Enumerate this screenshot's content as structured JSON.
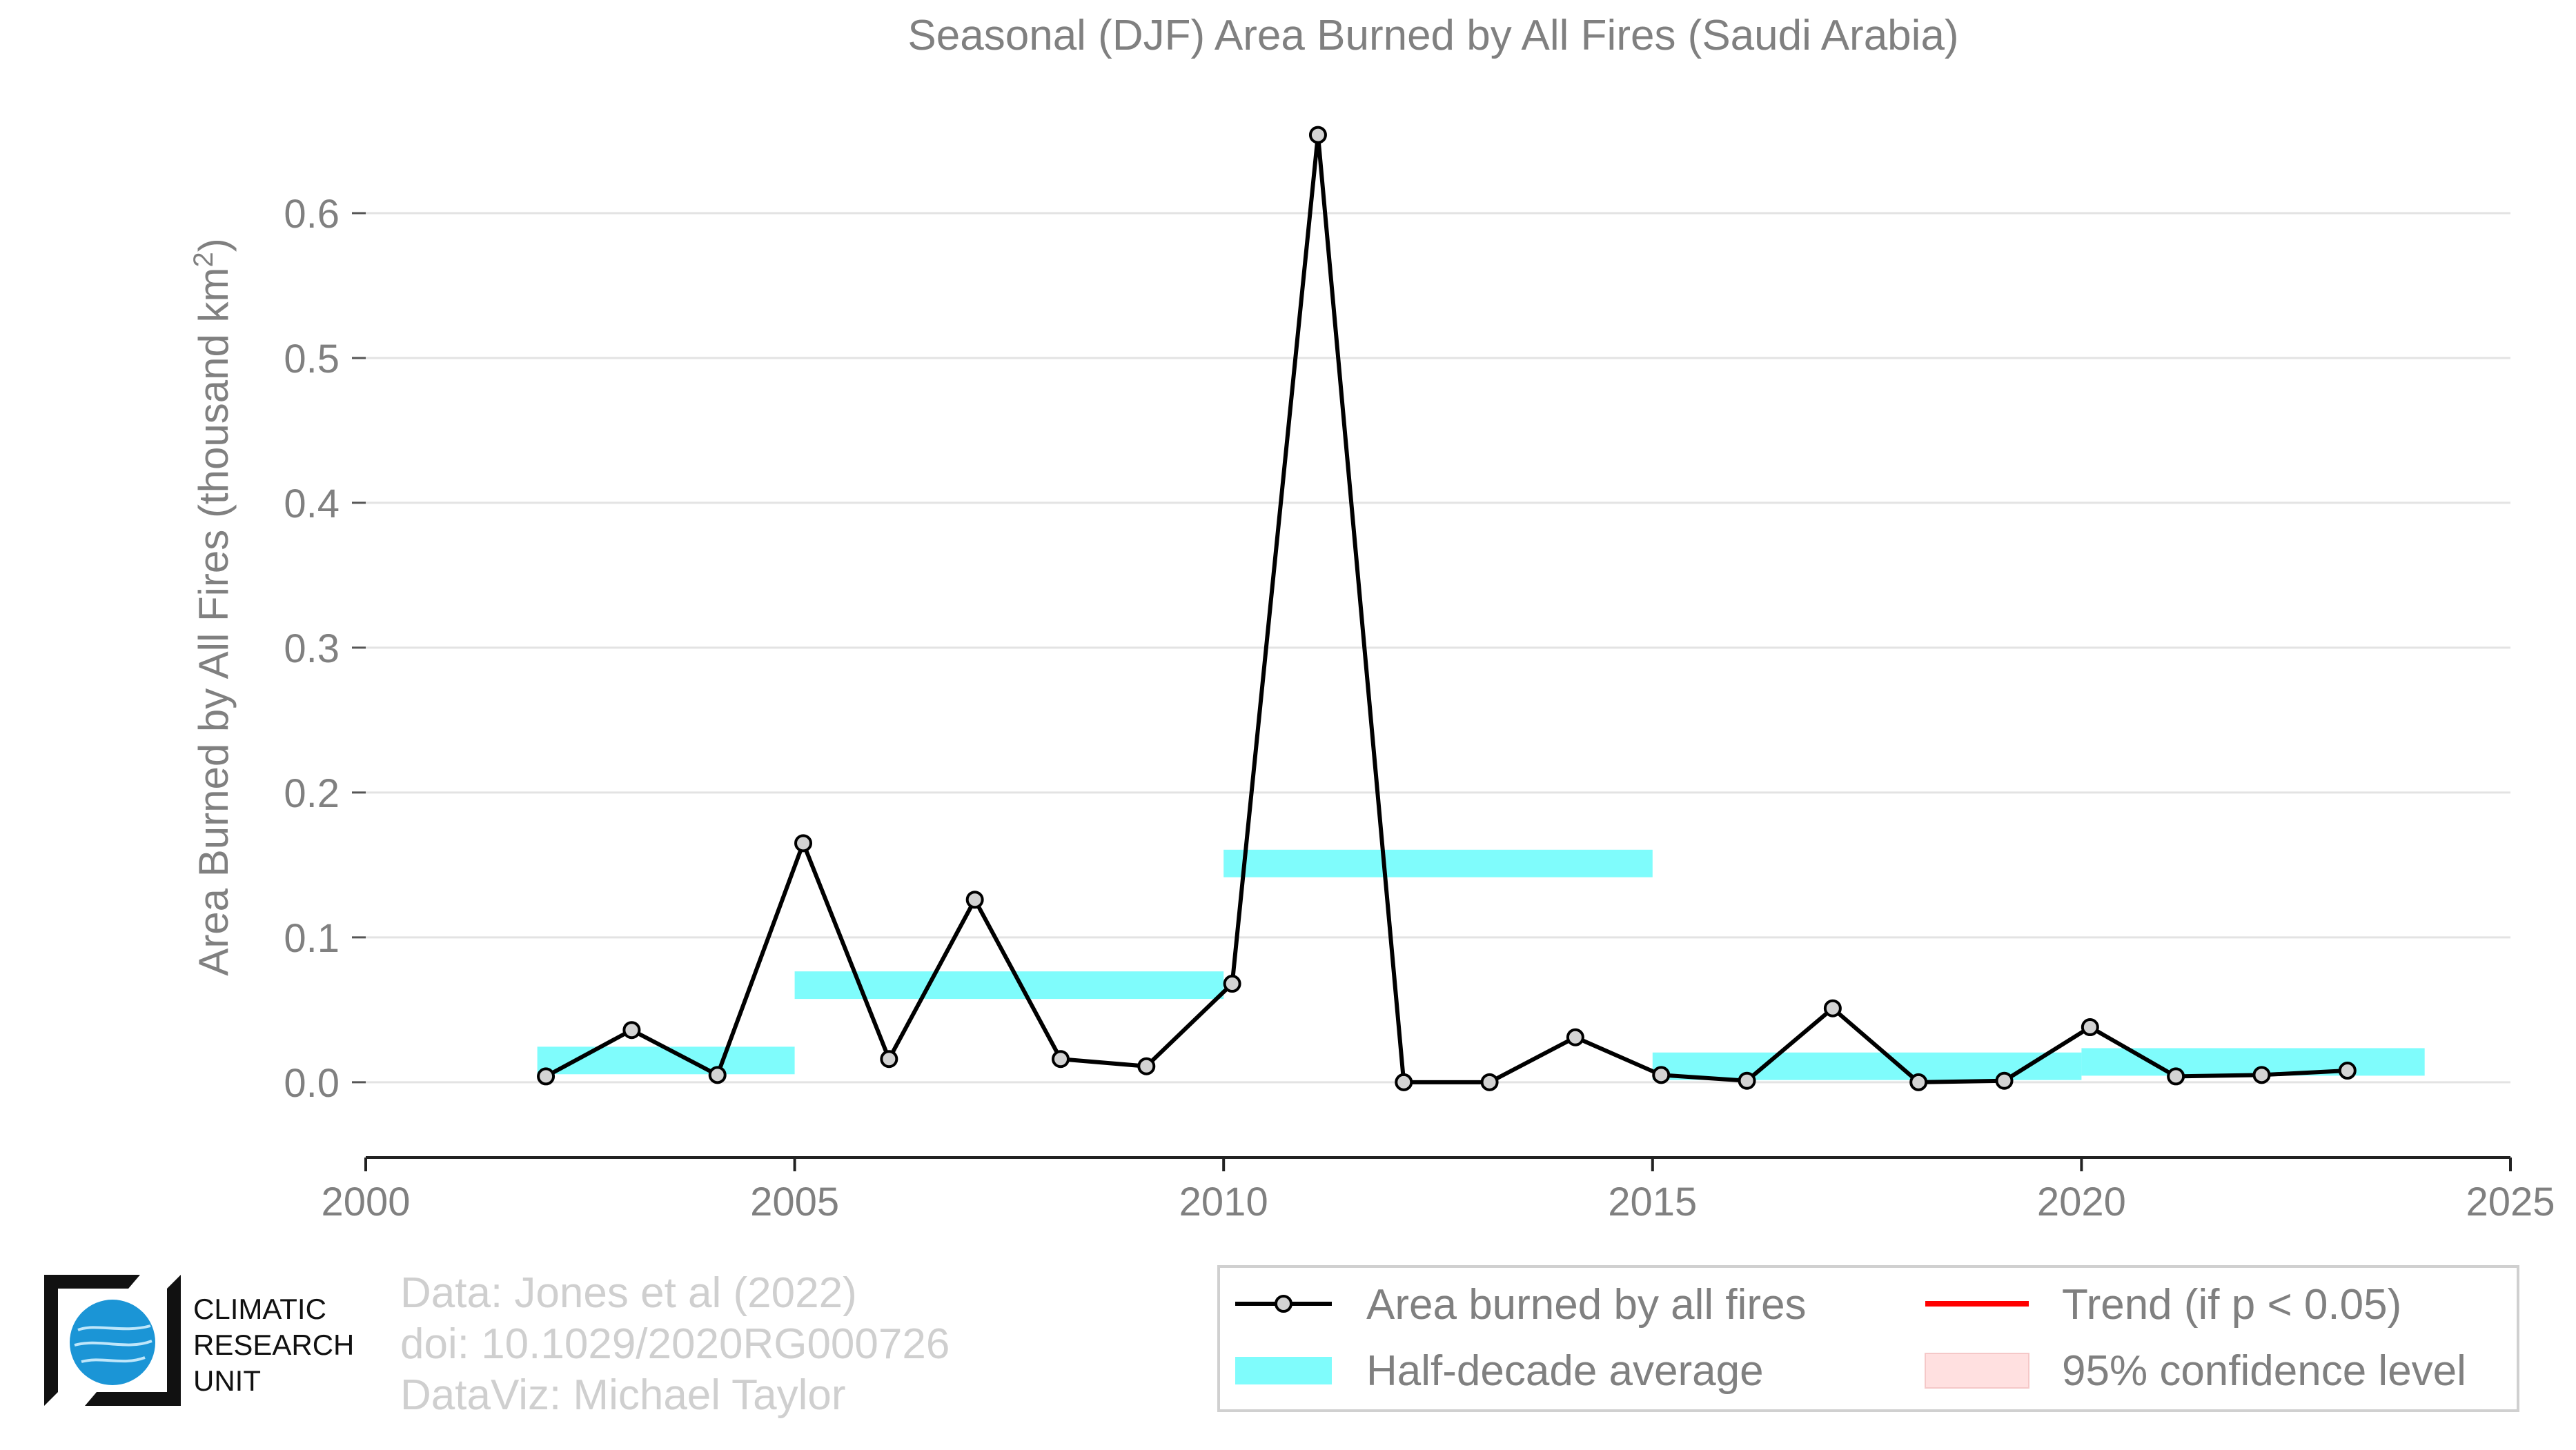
{
  "chart_data": {
    "type": "line",
    "title": "Seasonal (DJF) Area Burned by All Fires (Saudi Arabia)",
    "ylabel": "Area Burned by All Fires (thousand km",
    "ylabel_superscript": "2",
    "ylabel_close": ")",
    "xlim": [
      2000,
      2025
    ],
    "ylim": [
      -0.052,
      0.69
    ],
    "xticks": [
      2000,
      2005,
      2010,
      2015,
      2020,
      2025
    ],
    "xtick_labels": [
      "2000",
      "2005",
      "2010",
      "2015",
      "2020",
      "2025"
    ],
    "yticks": [
      0.0,
      0.1,
      0.2,
      0.3,
      0.4,
      0.5,
      0.6
    ],
    "ytick_labels": [
      "0.0",
      "0.1",
      "0.2",
      "0.3",
      "0.4",
      "0.5",
      "0.6"
    ],
    "grid": "horizontal",
    "series": [
      {
        "name": "Area burned by all fires",
        "color": "#000000",
        "marker_fill": "#d3d3d3",
        "x": [
          2002.1,
          2003.1,
          2004.1,
          2005.1,
          2006.1,
          2007.1,
          2008.1,
          2009.1,
          2010.1,
          2011.1,
          2012.1,
          2013.1,
          2014.1,
          2015.1,
          2016.1,
          2017.1,
          2018.1,
          2019.1,
          2020.1,
          2021.1,
          2022.1,
          2023.1
        ],
        "y": [
          0.004,
          0.036,
          0.005,
          0.165,
          0.016,
          0.126,
          0.016,
          0.011,
          0.068,
          0.654,
          0.0,
          0.0,
          0.031,
          0.005,
          0.001,
          0.051,
          0.0,
          0.001,
          0.038,
          0.004,
          0.005,
          0.008
        ]
      }
    ],
    "half_decade_averages": {
      "name": "Half-decade average",
      "color": "#7ffcfc",
      "segments": [
        {
          "x0": 2002,
          "x1": 2005,
          "y": 0.015
        },
        {
          "x0": 2005,
          "x1": 2010,
          "y": 0.067
        },
        {
          "x0": 2010,
          "x1": 2015,
          "y": 0.151
        },
        {
          "x0": 2015,
          "x1": 2020,
          "y": 0.011
        },
        {
          "x0": 2020,
          "x1": 2024,
          "y": 0.014
        }
      ]
    },
    "legend": {
      "placement": "bottom-right",
      "items": [
        {
          "label": "Area burned by all fires",
          "kind": "line-marker",
          "color": "#000000"
        },
        {
          "label": "Trend (if p < 0.05)",
          "kind": "line",
          "color": "#ff0000"
        },
        {
          "label": "Half-decade average",
          "kind": "band",
          "color": "#7ffcfc"
        },
        {
          "label": "95% confidence level",
          "kind": "band",
          "color": "#ffe0e0"
        }
      ]
    }
  },
  "credits": {
    "line1": "Data: Jones et al (2022)",
    "line2": "doi: 10.1029/2020RG000726",
    "line3": "DataViz: Michael Taylor"
  },
  "logo": {
    "line1": "CLIMATIC",
    "line2": "RESEARCH",
    "line3": "UNIT",
    "globe_color": "#1b95d6"
  }
}
